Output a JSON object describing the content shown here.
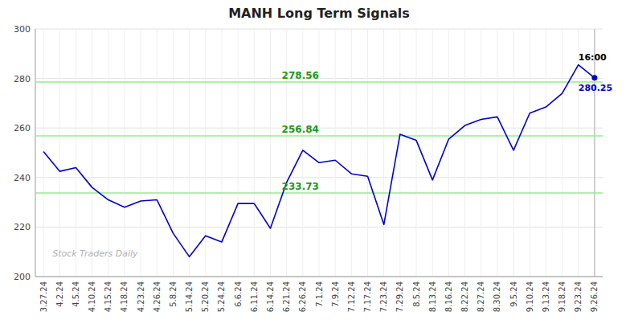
{
  "chart_data": {
    "type": "line",
    "title": "MANH Long Term Signals",
    "categories": [
      "3.27.24",
      "4.2.24",
      "4.5.24",
      "4.10.24",
      "4.15.24",
      "4.18.24",
      "4.23.24",
      "4.26.24",
      "5.8.24",
      "5.14.24",
      "5.20.24",
      "5.24.24",
      "6.6.24",
      "6.11.24",
      "6.14.24",
      "6.21.24",
      "6.26.24",
      "7.1.24",
      "7.9.24",
      "7.12.24",
      "7.17.24",
      "7.23.24",
      "7.29.24",
      "8.5.24",
      "8.13.24",
      "8.16.24",
      "8.22.24",
      "8.27.24",
      "8.30.24",
      "9.5.24",
      "9.10.24",
      "9.13.24",
      "9.18.24",
      "9.23.24",
      "9.26.24"
    ],
    "values": [
      250.5,
      242.5,
      244.0,
      236.0,
      231.0,
      228.0,
      230.5,
      231.0,
      217.5,
      208.0,
      216.5,
      214.0,
      229.5,
      229.5,
      219.5,
      238.0,
      251.0,
      246.0,
      247.0,
      241.5,
      240.5,
      221.0,
      257.5,
      255.0,
      239.0,
      255.5,
      261.0,
      263.5,
      264.5,
      251.0,
      266.0,
      268.5,
      274.0,
      285.5,
      280.25
    ],
    "color": "#0000cc",
    "hlines": {
      "values": [
        233.73,
        256.84,
        278.56
      ],
      "color": "#90EE90"
    },
    "last_time": "16:00",
    "last_price": 280.25,
    "watermark": "Stock Traders Daily",
    "ylim": [
      200,
      300
    ],
    "yticks": [
      200,
      220,
      240,
      260,
      280,
      300
    ],
    "grid": true
  }
}
